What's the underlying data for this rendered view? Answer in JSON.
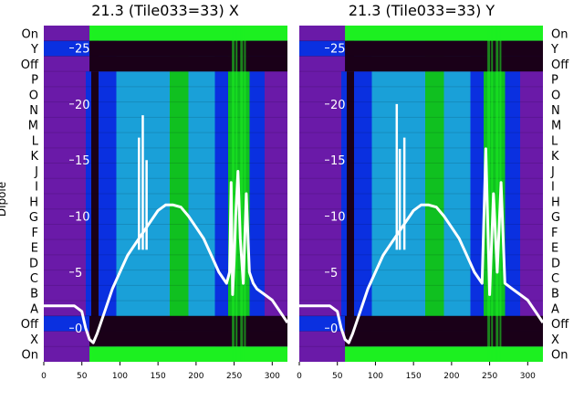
{
  "chart_data": [
    {
      "type": "heatmap",
      "title": "21.3 (Tile033=33) X",
      "ylabel": "Dipole",
      "row_labels": [
        "On",
        "Y",
        "Off",
        "P",
        "O",
        "N",
        "M",
        "L",
        "K",
        "J",
        "I",
        "H",
        "G",
        "F",
        "E",
        "D",
        "C",
        "B",
        "A",
        "Off",
        "X",
        "On"
      ],
      "x_ticks": [
        "0",
        "50",
        "100",
        "150",
        "200",
        "250",
        "300"
      ],
      "xlim": [
        0,
        320
      ],
      "overlay_ticks": [
        "25",
        "20",
        "15",
        "10",
        "5",
        "0"
      ],
      "overlay_ylim": [
        -3,
        27
      ],
      "overlay_series": {
        "x": [
          0,
          40,
          50,
          55,
          60,
          65,
          70,
          80,
          90,
          100,
          110,
          120,
          130,
          140,
          150,
          160,
          170,
          180,
          190,
          200,
          210,
          220,
          230,
          240,
          244,
          246,
          248,
          250,
          252,
          255,
          258,
          262,
          266,
          270,
          275,
          280,
          290,
          300,
          310,
          320
        ],
        "y": [
          2,
          2,
          1.5,
          0,
          -1,
          -1.3,
          -0.5,
          1.5,
          3.5,
          5,
          6.5,
          7.5,
          8.5,
          9.5,
          10.5,
          11,
          11,
          10.8,
          10,
          9,
          8,
          6.5,
          5,
          4,
          5,
          13,
          3,
          6,
          10,
          14,
          8,
          4,
          12,
          5,
          4,
          3.5,
          3,
          2.5,
          1.5,
          0.5
        ]
      },
      "spikes": [
        [
          125,
          17
        ],
        [
          130,
          19
        ],
        [
          135,
          15
        ]
      ]
    },
    {
      "type": "heatmap",
      "title": "21.3 (Tile033=33) Y",
      "row_labels": [
        "On",
        "Y",
        "Off",
        "P",
        "O",
        "N",
        "M",
        "L",
        "K",
        "J",
        "I",
        "H",
        "G",
        "F",
        "E",
        "D",
        "C",
        "B",
        "A",
        "Off",
        "X",
        "On"
      ],
      "x_ticks": [
        "0",
        "50",
        "100",
        "150",
        "200",
        "250",
        "300"
      ],
      "xlim": [
        0,
        320
      ],
      "overlay_ticks": [
        "25",
        "20",
        "15",
        "10",
        "5",
        "0"
      ],
      "overlay_ylim": [
        -3,
        27
      ],
      "overlay_series": {
        "x": [
          0,
          40,
          50,
          55,
          60,
          65,
          70,
          80,
          90,
          100,
          110,
          120,
          130,
          140,
          150,
          160,
          170,
          180,
          190,
          200,
          210,
          220,
          230,
          240,
          245,
          250,
          255,
          260,
          265,
          270,
          280,
          290,
          300,
          310,
          320
        ],
        "y": [
          2,
          2,
          1.5,
          0,
          -1,
          -1.3,
          -0.5,
          1.5,
          3.5,
          5,
          6.5,
          7.5,
          8.5,
          9.5,
          10.5,
          11,
          11,
          10.8,
          10,
          9,
          8,
          6.5,
          5,
          4,
          16,
          3,
          12,
          5,
          13,
          4,
          3.5,
          3,
          2.5,
          1.5,
          0.5
        ]
      },
      "spikes": [
        [
          128,
          20
        ],
        [
          132,
          16
        ],
        [
          138,
          17
        ]
      ]
    }
  ],
  "colors": {
    "purple": "#6a1aa8",
    "dark": "#1a0018",
    "blue": "#0a30e0",
    "cyan": "#1aa0d8",
    "green": "#10c020",
    "bright_green": "#1cf020",
    "line": "#ffffff"
  }
}
